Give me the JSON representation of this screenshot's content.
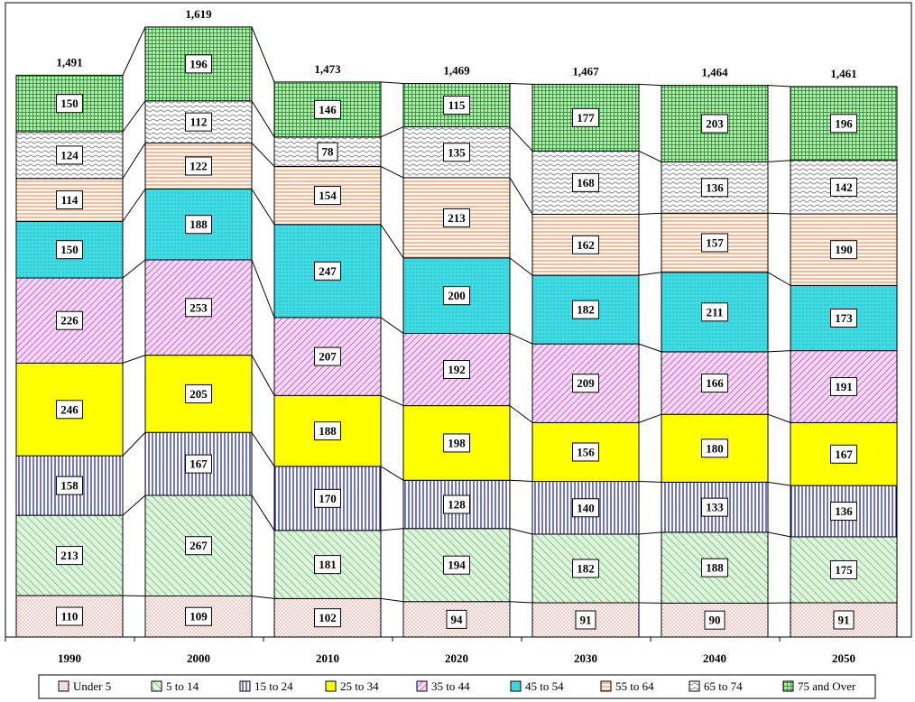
{
  "chart_data": {
    "type": "bar",
    "stacked": true,
    "title": "",
    "xlabel": "",
    "ylabel": "",
    "categories": [
      "1990",
      "2000",
      "2010",
      "2020",
      "2030",
      "2040",
      "2050"
    ],
    "totals": [
      "1,491",
      "1,619",
      "1,473",
      "1,469",
      "1,467",
      "1,464",
      "1,461"
    ],
    "series": [
      {
        "name": "Under 5",
        "values": [
          110,
          109,
          102,
          94,
          91,
          90,
          91
        ],
        "color": "#ffe4e1",
        "pattern": "dots"
      },
      {
        "name": "5 to 14",
        "values": [
          213,
          267,
          181,
          194,
          182,
          188,
          175
        ],
        "color": "#7fcf7f",
        "pattern": "diag-light"
      },
      {
        "name": "15 to 24",
        "values": [
          158,
          167,
          170,
          128,
          140,
          133,
          136
        ],
        "color": "#1a1a80",
        "pattern": "vertical"
      },
      {
        "name": "25 to 34",
        "values": [
          246,
          205,
          188,
          198,
          156,
          180,
          167
        ],
        "color": "#ffff00",
        "pattern": "solid"
      },
      {
        "name": "35 to 44",
        "values": [
          226,
          253,
          207,
          192,
          209,
          166,
          191
        ],
        "color": "#b040b0",
        "pattern": "diag-dense"
      },
      {
        "name": "45 to 54",
        "values": [
          150,
          188,
          247,
          200,
          182,
          211,
          173
        ],
        "color": "#40d8e0",
        "pattern": "dots-fill"
      },
      {
        "name": "55 to 64",
        "values": [
          114,
          122,
          154,
          213,
          162,
          157,
          190
        ],
        "color": "#e0a070",
        "pattern": "horizontal"
      },
      {
        "name": "65 to 74",
        "values": [
          124,
          112,
          78,
          135,
          168,
          136,
          142
        ],
        "color": "#999999",
        "pattern": "wave"
      },
      {
        "name": "75 and Over",
        "values": [
          150,
          196,
          146,
          115,
          177,
          203,
          196
        ],
        "color": "#38a038",
        "pattern": "grid"
      }
    ],
    "legend_position": "bottom",
    "grid": false
  }
}
